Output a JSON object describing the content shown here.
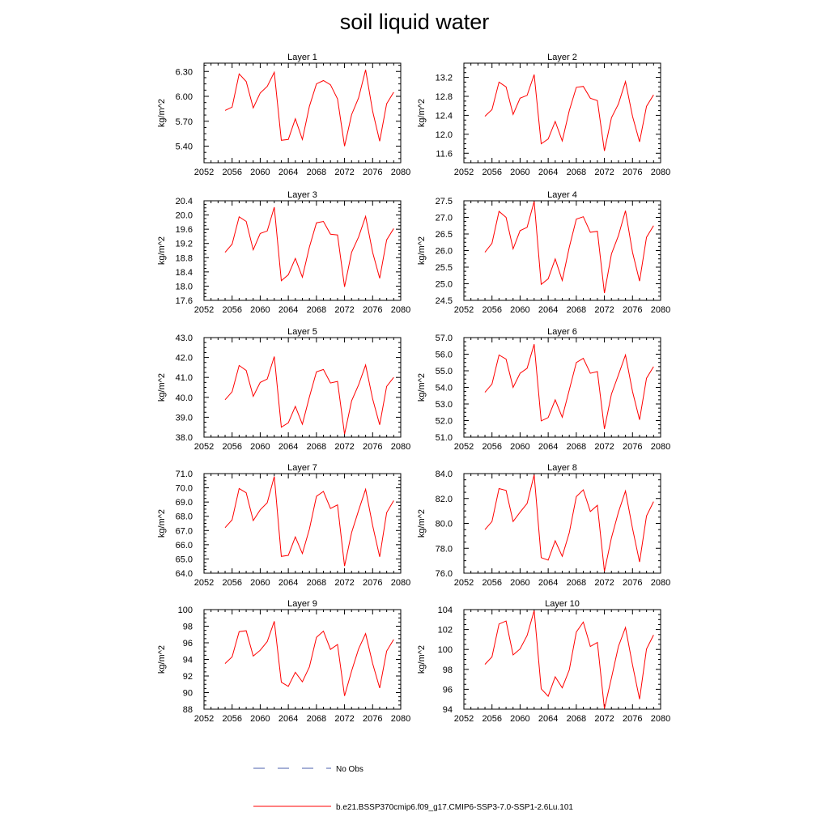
{
  "title": "soil liquid water",
  "legend": {
    "obs_label": "No Obs",
    "model_label": "b.e21.BSSP370cmip6.f09_g17.CMIP6-SSP3-7.0-SSP1-2.6Lu.101",
    "obs_color": "#4b5fae",
    "model_color": "#ff0000"
  },
  "colors": {
    "line": "#ff0000",
    "axis": "#000000"
  },
  "chart_data": [
    {
      "type": "line",
      "title": "Layer 1",
      "xlabel": "",
      "ylabel": "kg/m^2",
      "xlim": [
        2052,
        2080
      ],
      "ylim": [
        5.2,
        6.4
      ],
      "xticks": [
        "2052",
        "2056",
        "2060",
        "2064",
        "2068",
        "2072",
        "2076",
        "2080"
      ],
      "yticks": [
        "5.40",
        "5.70",
        "6.00",
        "6.30"
      ],
      "x": [
        2055,
        2056,
        2057,
        2058,
        2059,
        2060,
        2061,
        2062,
        2063,
        2064,
        2065,
        2066,
        2067,
        2068,
        2069,
        2070,
        2071,
        2072,
        2073,
        2074,
        2075,
        2076,
        2077,
        2078,
        2079
      ],
      "y": [
        5.83,
        5.87,
        6.27,
        6.18,
        5.86,
        6.04,
        6.12,
        6.29,
        5.47,
        5.48,
        5.73,
        5.48,
        5.88,
        6.15,
        6.19,
        6.14,
        5.97,
        5.4,
        5.78,
        5.98,
        6.32,
        5.82,
        5.46,
        5.91,
        6.05
      ]
    },
    {
      "type": "line",
      "title": "Layer 2",
      "xlabel": "",
      "ylabel": "kg/m^2",
      "xlim": [
        2052,
        2080
      ],
      "ylim": [
        11.4,
        13.5
      ],
      "xticks": [
        "2052",
        "2056",
        "2060",
        "2064",
        "2068",
        "2072",
        "2076",
        "2080"
      ],
      "yticks": [
        "11.6",
        "12.0",
        "12.4",
        "12.8",
        "13.2"
      ],
      "x": [
        2055,
        2056,
        2057,
        2058,
        2059,
        2060,
        2061,
        2062,
        2063,
        2064,
        2065,
        2066,
        2067,
        2068,
        2069,
        2070,
        2071,
        2072,
        2073,
        2074,
        2075,
        2076,
        2077,
        2078,
        2079
      ],
      "y": [
        12.38,
        12.52,
        13.1,
        13.0,
        12.42,
        12.76,
        12.82,
        13.26,
        11.8,
        11.9,
        12.27,
        11.86,
        12.5,
        12.99,
        13.01,
        12.76,
        12.71,
        11.65,
        12.35,
        12.64,
        13.11,
        12.38,
        11.84,
        12.59,
        12.83
      ]
    },
    {
      "type": "line",
      "title": "Layer 3",
      "xlabel": "",
      "ylabel": "kg/m^2",
      "xlim": [
        2052,
        2080
      ],
      "ylim": [
        17.6,
        20.4
      ],
      "xticks": [
        "2052",
        "2056",
        "2060",
        "2064",
        "2068",
        "2072",
        "2076",
        "2080"
      ],
      "yticks": [
        "17.6",
        "18.0",
        "18.4",
        "18.8",
        "19.2",
        "19.6",
        "20.0",
        "20.4"
      ],
      "x": [
        2055,
        2056,
        2057,
        2058,
        2059,
        2060,
        2061,
        2062,
        2063,
        2064,
        2065,
        2066,
        2067,
        2068,
        2069,
        2070,
        2071,
        2072,
        2073,
        2074,
        2075,
        2076,
        2077,
        2078,
        2079
      ],
      "y": [
        18.95,
        19.18,
        19.95,
        19.82,
        19.02,
        19.48,
        19.55,
        20.22,
        18.15,
        18.32,
        18.78,
        18.25,
        19.1,
        19.78,
        19.82,
        19.46,
        19.44,
        17.98,
        18.95,
        19.38,
        19.96,
        18.95,
        18.22,
        19.3,
        19.62
      ]
    },
    {
      "type": "line",
      "title": "Layer 4",
      "xlabel": "",
      "ylabel": "kg/m^2",
      "xlim": [
        2052,
        2080
      ],
      "ylim": [
        24.5,
        27.5
      ],
      "xticks": [
        "2052",
        "2056",
        "2060",
        "2064",
        "2068",
        "2072",
        "2076",
        "2080"
      ],
      "yticks": [
        "24.5",
        "25.0",
        "25.5",
        "26.0",
        "26.5",
        "27.0",
        "27.5"
      ],
      "x": [
        2055,
        2056,
        2057,
        2058,
        2059,
        2060,
        2061,
        2062,
        2063,
        2064,
        2065,
        2066,
        2067,
        2068,
        2069,
        2070,
        2071,
        2072,
        2073,
        2074,
        2075,
        2076,
        2077,
        2078,
        2079
      ],
      "y": [
        25.95,
        26.22,
        27.18,
        27.0,
        26.05,
        26.6,
        26.7,
        27.48,
        24.98,
        25.15,
        25.75,
        25.1,
        26.1,
        26.95,
        27.02,
        26.55,
        26.58,
        24.72,
        25.9,
        26.45,
        27.2,
        25.95,
        25.08,
        26.4,
        26.75
      ]
    },
    {
      "type": "line",
      "title": "Layer 5",
      "xlabel": "",
      "ylabel": "kg/m^2",
      "xlim": [
        2052,
        2080
      ],
      "ylim": [
        38.0,
        43.0
      ],
      "xticks": [
        "2052",
        "2056",
        "2060",
        "2064",
        "2068",
        "2072",
        "2076",
        "2080"
      ],
      "yticks": [
        "38.0",
        "39.0",
        "40.0",
        "41.0",
        "42.0",
        "43.0"
      ],
      "x": [
        2055,
        2056,
        2057,
        2058,
        2059,
        2060,
        2061,
        2062,
        2063,
        2064,
        2065,
        2066,
        2067,
        2068,
        2069,
        2070,
        2071,
        2072,
        2073,
        2074,
        2075,
        2076,
        2077,
        2078,
        2079
      ],
      "y": [
        39.88,
        40.28,
        41.6,
        41.35,
        40.05,
        40.75,
        40.92,
        42.05,
        38.5,
        38.72,
        39.55,
        38.65,
        40.02,
        41.28,
        41.4,
        40.72,
        40.8,
        38.15,
        39.82,
        40.62,
        41.62,
        39.92,
        38.62,
        40.55,
        41.0
      ]
    },
    {
      "type": "line",
      "title": "Layer 6",
      "xlabel": "",
      "ylabel": "kg/m^2",
      "xlim": [
        2052,
        2080
      ],
      "ylim": [
        51.0,
        57.0
      ],
      "xticks": [
        "2052",
        "2056",
        "2060",
        "2064",
        "2068",
        "2072",
        "2076",
        "2080"
      ],
      "yticks": [
        "51.0",
        "52.0",
        "53.0",
        "54.0",
        "55.0",
        "56.0",
        "57.0"
      ],
      "x": [
        2055,
        2056,
        2057,
        2058,
        2059,
        2060,
        2061,
        2062,
        2063,
        2064,
        2065,
        2066,
        2067,
        2068,
        2069,
        2070,
        2071,
        2072,
        2073,
        2074,
        2075,
        2076,
        2077,
        2078,
        2079
      ],
      "y": [
        53.7,
        54.2,
        55.95,
        55.7,
        54.0,
        54.85,
        55.15,
        56.6,
        51.98,
        52.18,
        53.25,
        52.2,
        53.85,
        55.5,
        55.75,
        54.85,
        54.95,
        51.5,
        53.6,
        54.75,
        55.95,
        53.75,
        52.05,
        54.55,
        55.25
      ]
    },
    {
      "type": "line",
      "title": "Layer 7",
      "xlabel": "",
      "ylabel": "kg/m^2",
      "xlim": [
        2052,
        2080
      ],
      "ylim": [
        64.0,
        71.0
      ],
      "xticks": [
        "2052",
        "2056",
        "2060",
        "2064",
        "2068",
        "2072",
        "2076",
        "2080"
      ],
      "yticks": [
        "64.0",
        "65.0",
        "66.0",
        "67.0",
        "68.0",
        "69.0",
        "70.0",
        "71.0"
      ],
      "x": [
        2055,
        2056,
        2057,
        2058,
        2059,
        2060,
        2061,
        2062,
        2063,
        2064,
        2065,
        2066,
        2067,
        2068,
        2069,
        2070,
        2071,
        2072,
        2073,
        2074,
        2075,
        2076,
        2077,
        2078,
        2079
      ],
      "y": [
        67.2,
        67.75,
        69.95,
        69.65,
        67.7,
        68.45,
        68.95,
        70.8,
        65.18,
        65.25,
        66.55,
        65.38,
        67.1,
        69.4,
        69.75,
        68.55,
        68.8,
        64.5,
        66.85,
        68.4,
        69.9,
        67.35,
        65.15,
        68.25,
        69.1
      ]
    },
    {
      "type": "line",
      "title": "Layer 8",
      "xlabel": "",
      "ylabel": "kg/m^2",
      "xlim": [
        2052,
        2080
      ],
      "ylim": [
        76.0,
        84.0
      ],
      "xticks": [
        "2052",
        "2056",
        "2060",
        "2064",
        "2068",
        "2072",
        "2076",
        "2080"
      ],
      "yticks": [
        "76.0",
        "78.0",
        "80.0",
        "82.0",
        "84.0"
      ],
      "x": [
        2055,
        2056,
        2057,
        2058,
        2059,
        2060,
        2061,
        2062,
        2063,
        2064,
        2065,
        2066,
        2067,
        2068,
        2069,
        2070,
        2071,
        2072,
        2073,
        2074,
        2075,
        2076,
        2077,
        2078,
        2079
      ],
      "y": [
        79.5,
        80.15,
        82.8,
        82.65,
        80.15,
        80.9,
        81.6,
        83.9,
        77.25,
        77.05,
        78.6,
        77.35,
        79.25,
        82.15,
        82.7,
        80.95,
        81.45,
        76.15,
        78.85,
        80.9,
        82.6,
        79.6,
        76.9,
        80.6,
        81.75
      ]
    },
    {
      "type": "line",
      "title": "Layer 9",
      "xlabel": "",
      "ylabel": "kg/m^2",
      "xlim": [
        2052,
        2080
      ],
      "ylim": [
        88,
        100
      ],
      "xticks": [
        "2052",
        "2056",
        "2060",
        "2064",
        "2068",
        "2072",
        "2076",
        "2080"
      ],
      "yticks": [
        "88",
        "90",
        "92",
        "94",
        "96",
        "98",
        "100"
      ],
      "x": [
        2055,
        2056,
        2057,
        2058,
        2059,
        2060,
        2061,
        2062,
        2063,
        2064,
        2065,
        2066,
        2067,
        2068,
        2069,
        2070,
        2071,
        2072,
        2073,
        2074,
        2075,
        2076,
        2077,
        2078,
        2079
      ],
      "y": [
        93.5,
        94.3,
        97.35,
        97.45,
        94.4,
        95.1,
        96.15,
        98.6,
        91.25,
        90.75,
        92.45,
        91.3,
        93.1,
        96.65,
        97.4,
        95.2,
        95.8,
        89.6,
        92.6,
        95.25,
        97.1,
        93.5,
        90.55,
        95.0,
        96.4
      ]
    },
    {
      "type": "line",
      "title": "Layer 10",
      "xlabel": "",
      "ylabel": "kg/m^2",
      "xlim": [
        2052,
        2080
      ],
      "ylim": [
        94,
        104
      ],
      "xticks": [
        "2052",
        "2056",
        "2060",
        "2064",
        "2068",
        "2072",
        "2076",
        "2080"
      ],
      "yticks": [
        "94",
        "96",
        "98",
        "100",
        "102",
        "104"
      ],
      "x": [
        2055,
        2056,
        2057,
        2058,
        2059,
        2060,
        2061,
        2062,
        2063,
        2064,
        2065,
        2066,
        2067,
        2068,
        2069,
        2070,
        2071,
        2072,
        2073,
        2074,
        2075,
        2076,
        2077,
        2078,
        2079
      ],
      "y": [
        98.5,
        99.25,
        102.55,
        102.85,
        99.45,
        100.05,
        101.4,
        103.9,
        96.05,
        95.3,
        97.25,
        96.15,
        97.95,
        101.75,
        102.75,
        100.3,
        100.7,
        94.05,
        97.15,
        100.3,
        102.2,
        98.45,
        95.0,
        100.05,
        101.45
      ]
    }
  ]
}
